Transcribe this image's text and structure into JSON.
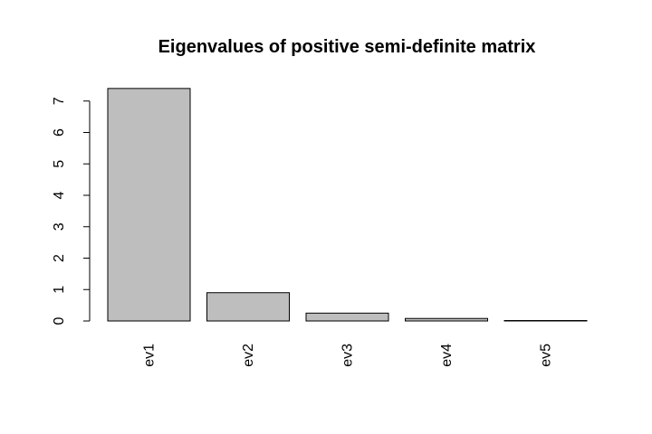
{
  "chart_data": {
    "type": "bar",
    "title": "Eigenvalues of positive semi-definite matrix",
    "xlabel": "",
    "ylabel": "",
    "categories": [
      "ev1",
      "ev2",
      "ev3",
      "ev4",
      "ev5"
    ],
    "values": [
      7.4,
      0.9,
      0.25,
      0.08,
      0.01
    ],
    "ylim": [
      0,
      7
    ],
    "yticks": [
      0,
      1,
      2,
      3,
      4,
      5,
      6,
      7
    ],
    "bar_color": "#bebebe",
    "grid": false,
    "legend": "none"
  }
}
